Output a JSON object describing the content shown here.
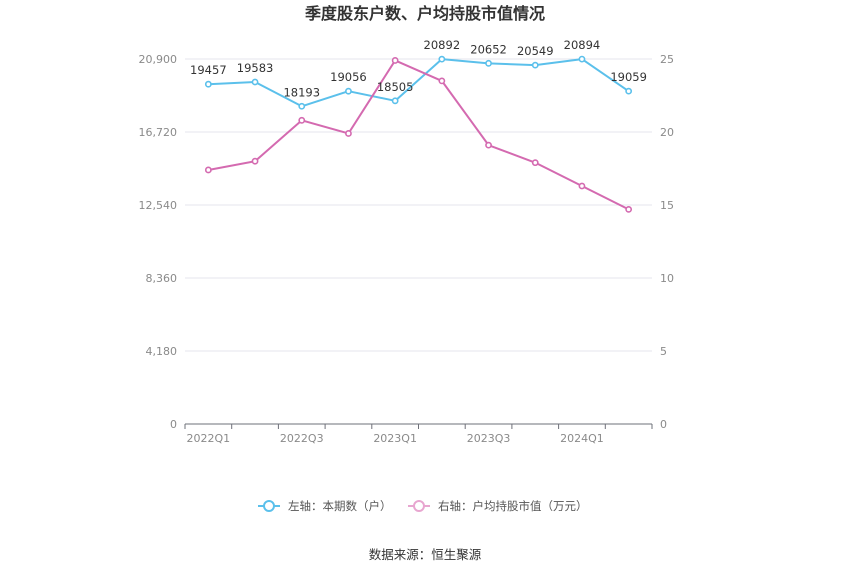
{
  "chart_data": {
    "type": "line",
    "title": "季度股东户数、户均持股市值情况",
    "x": [
      "2022Q1",
      "2022Q2",
      "2022Q3",
      "2022Q4",
      "2023Q1",
      "2023Q2",
      "2023Q3",
      "2023Q4",
      "2024Q1",
      "2024Q2"
    ],
    "x_tick_labels": [
      "2022Q1",
      "2022Q3",
      "2023Q1",
      "2023Q3",
      "2024Q1"
    ],
    "y_left": {
      "ylim": [
        0,
        20900
      ],
      "ticks": [
        "0",
        "4,180",
        "8,360",
        "12,540",
        "16,720",
        "20,900"
      ]
    },
    "y_right": {
      "ylim": [
        0,
        25
      ],
      "ticks": [
        "0",
        "5",
        "10",
        "15",
        "20",
        "25"
      ]
    },
    "grid": true,
    "legend_position": "bottom",
    "series": [
      {
        "name": "左轴：本期数（户）",
        "axis": "left",
        "color": "#5bc0eb",
        "values": [
          19457,
          19583,
          18193,
          19056,
          18505,
          20892,
          20652,
          20549,
          20894,
          19059
        ],
        "labels": [
          "19457",
          "19583",
          "18193",
          "19056",
          "18505",
          "20892",
          "20652",
          "20549",
          "20894",
          "19059"
        ]
      },
      {
        "name": "右轴：户均持股市值（万元）",
        "axis": "right",
        "color": "#d46ab0",
        "values": [
          17.4,
          18.0,
          20.8,
          19.9,
          24.9,
          23.5,
          19.1,
          17.9,
          16.3,
          14.7
        ]
      }
    ]
  },
  "source_text": "数据来源：恒生聚源"
}
